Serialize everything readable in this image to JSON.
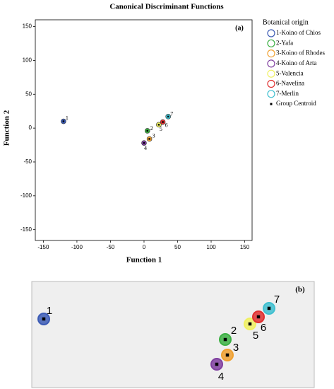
{
  "chart_data": [
    {
      "type": "scatter",
      "title": "Canonical Discriminant Functions",
      "x_label": "Function 1",
      "y_label": "Function 2",
      "annotation": "(a)",
      "legend_title": "Botanical origin",
      "centroid_label": "Group Centroid",
      "xlim": [
        -162,
        161
      ],
      "ylim": [
        -166,
        160
      ],
      "xticks": [
        -150,
        -100,
        -50,
        0,
        50,
        100,
        150
      ],
      "yticks": [
        -150,
        -100,
        -50,
        0,
        50,
        100,
        150
      ],
      "series": [
        {
          "name": "1-Koino of Chios",
          "color": "#3b5bb5",
          "labels": [
            "1"
          ],
          "x": [
            -120
          ],
          "y": [
            10
          ]
        },
        {
          "name": "2-Yafa",
          "color": "#3cb043",
          "labels": [
            "2"
          ],
          "x": [
            5
          ],
          "y": [
            -4
          ]
        },
        {
          "name": "3-Koino of Rhodes",
          "color": "#f0a030",
          "labels": [
            "3"
          ],
          "x": [
            8
          ],
          "y": [
            -16
          ]
        },
        {
          "name": "4-Koino of Arta",
          "color": "#8040a0",
          "labels": [
            "4"
          ],
          "x": [
            0
          ],
          "y": [
            -22
          ]
        },
        {
          "name": "5-Valencia",
          "color": "#f0f060",
          "labels": [
            "5"
          ],
          "x": [
            22
          ],
          "y": [
            5
          ]
        },
        {
          "name": "6-Navelina",
          "color": "#e03030",
          "labels": [
            "6"
          ],
          "x": [
            28
          ],
          "y": [
            9
          ]
        },
        {
          "name": "7-Merlin",
          "color": "#40c0d0",
          "labels": [
            "7"
          ],
          "x": [
            36
          ],
          "y": [
            17
          ]
        }
      ]
    },
    {
      "type": "scatter",
      "annotation": "(b)",
      "xlim": [
        0,
        100
      ],
      "ylim": [
        0,
        100
      ],
      "series": [
        {
          "color": "#3b5bb5",
          "labels": [
            "1"
          ],
          "x": [
            4.25
          ],
          "y": [
            64.7
          ]
        },
        {
          "color": "#3cb043",
          "labels": [
            "2"
          ],
          "x": [
            68.5
          ],
          "y": [
            45.3
          ]
        },
        {
          "color": "#f0a030",
          "labels": [
            "3"
          ],
          "x": [
            69.25
          ],
          "y": [
            30.7
          ]
        },
        {
          "color": "#8040a0",
          "labels": [
            "4"
          ],
          "x": [
            65.5
          ],
          "y": [
            22
          ]
        },
        {
          "color": "#f0f060",
          "labels": [
            "5"
          ],
          "x": [
            77.25
          ],
          "y": [
            60
          ]
        },
        {
          "color": "#e03030",
          "labels": [
            "6"
          ],
          "x": [
            80.25
          ],
          "y": [
            66.7
          ]
        },
        {
          "color": "#40c0d0",
          "labels": [
            "7"
          ],
          "x": [
            84
          ],
          "y": [
            74.7
          ]
        }
      ]
    }
  ]
}
